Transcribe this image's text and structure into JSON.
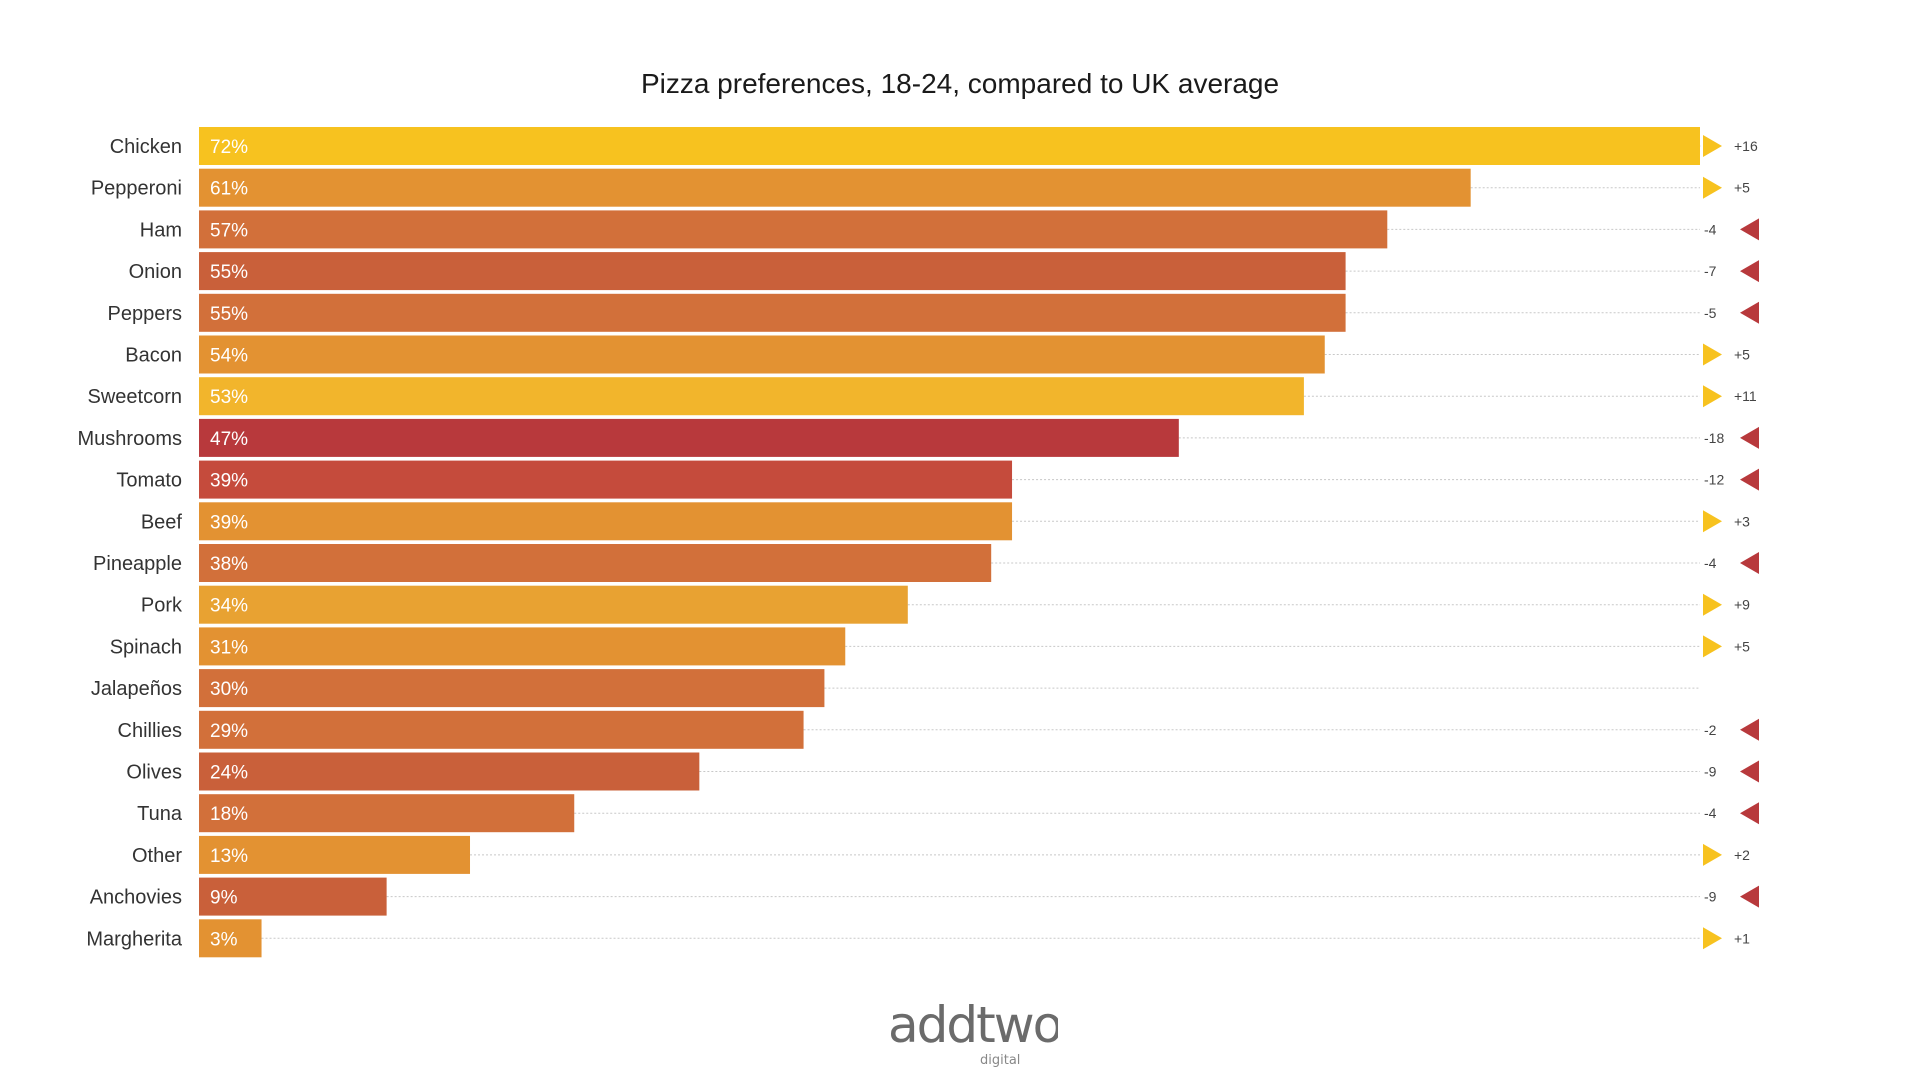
{
  "chart_data": {
    "type": "bar",
    "orientation": "horizontal",
    "title": "Pizza preferences, 18-24, compared to UK average",
    "categories": [
      "Chicken",
      "Pepperoni",
      "Ham",
      "Onion",
      "Peppers",
      "Bacon",
      "Sweetcorn",
      "Mushrooms",
      "Tomato",
      "Beef",
      "Pineapple",
      "Pork",
      "Spinach",
      "Jalapeños",
      "Chillies",
      "Olives",
      "Tuna",
      "Other",
      "Anchovies",
      "Margherita"
    ],
    "values": [
      72,
      61,
      57,
      55,
      55,
      54,
      53,
      47,
      39,
      39,
      38,
      34,
      31,
      30,
      29,
      24,
      18,
      13,
      9,
      3
    ],
    "value_labels": [
      "72%",
      "61%",
      "57%",
      "55%",
      "55%",
      "54%",
      "53%",
      "47%",
      "39%",
      "39%",
      "38%",
      "34%",
      "31%",
      "30%",
      "29%",
      "24%",
      "18%",
      "13%",
      "9%",
      "3%"
    ],
    "difference_vs_uk": [
      16,
      5,
      -4,
      -7,
      -5,
      5,
      11,
      -18,
      -12,
      3,
      -4,
      9,
      5,
      null,
      -2,
      -9,
      -4,
      2,
      -9,
      1
    ],
    "difference_labels": [
      "+16",
      "+5",
      "-4",
      "-7",
      "-5",
      "+5",
      "+11",
      "-18",
      "-12",
      "+3",
      "-4",
      "+9",
      "+5",
      "",
      "-2",
      "-9",
      "-4",
      "+2",
      "-9",
      "+1"
    ],
    "bar_colors": [
      "#F7C21F",
      "#E39232",
      "#D2703A",
      "#C9603A",
      "#D2703A",
      "#E39232",
      "#F2B52C",
      "#B8393C",
      "#C54B3C",
      "#E39232",
      "#D2703A",
      "#E8A232",
      "#E39232",
      "#D2703A",
      "#D2703A",
      "#C9603A",
      "#D2703A",
      "#E39232",
      "#C9603A",
      "#E39232"
    ],
    "up_color": "#F7C21F",
    "down_color": "#B8393C",
    "xlim": [
      0,
      72
    ],
    "grid": "dotted row guides"
  },
  "logo": {
    "text": "addtwo",
    "subtext": "digital"
  }
}
